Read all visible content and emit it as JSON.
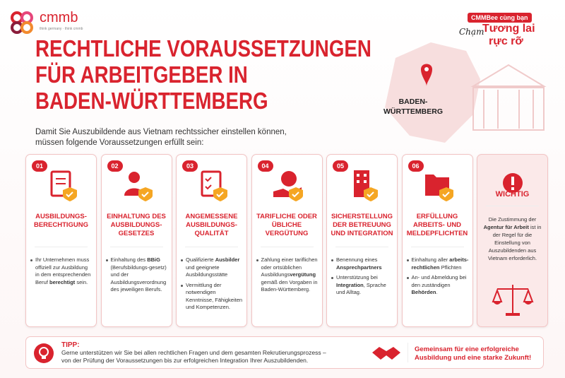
{
  "logo": {
    "name": "cmmb",
    "tagline": "think germany · think cmmb"
  },
  "badge": {
    "line1": "CMMBee cùng bạn",
    "script": "Chạm",
    "line2": "Tương lai",
    "line3": "rực rỡ"
  },
  "header": {
    "title_lines": [
      "RECHTLICHE VORAUSSETZUNGEN",
      "FÜR ARBEITGEBER IN",
      "BADEN-WÜRTTEMBERG"
    ],
    "map_label": [
      "BADEN-",
      "WÜRTTEMBERG"
    ],
    "intro": [
      "Damit Sie Auszubildende aus Vietnam rechtssicher einstellen können,",
      "müssen folgende Voraussetzungen erfüllt sein:"
    ]
  },
  "cards": [
    {
      "number": "01",
      "title": [
        "AUSBILDUNGS-",
        "BERECHTIGUNG"
      ],
      "bullets": [
        [
          {
            "text": "Ihr Unternehmen muss offiziell zur Ausbildung in dem entsprechenden Beruf "
          },
          {
            "text": "berechtigt",
            "bold": true
          },
          {
            "text": " sein."
          }
        ]
      ]
    },
    {
      "number": "02",
      "title": [
        "EINHALTUNG DES",
        "AUSBILDUNGS-",
        "GESETZES"
      ],
      "bullets": [
        [
          {
            "text": "Einhaltung des "
          },
          {
            "text": "BBiG",
            "bold": true
          },
          {
            "text": " (Berufsbildungs-gesetz) und der Ausbildungsverordnung des jeweiligen Berufs."
          }
        ]
      ]
    },
    {
      "number": "03",
      "title": [
        "ANGEMESSENE",
        "AUSBILDUNGS-",
        "QUALITÄT"
      ],
      "bullets": [
        [
          {
            "text": "Qualifizierte "
          },
          {
            "text": "Ausbilder",
            "bold": true
          },
          {
            "text": " und geeignete Ausbildungsstätte"
          }
        ],
        [
          {
            "text": "Vermittlung der notwendigen Kenntnisse, Fähigkeiten und Kompetenzen."
          }
        ]
      ]
    },
    {
      "number": "04",
      "title": [
        "TARIFLICHE ODER",
        "ÜBLICHE VERGÜTUNG"
      ],
      "bullets": [
        [
          {
            "text": "Zahlung einer tariflichen oder ortsüblichen Ausbildungs"
          },
          {
            "text": "vergütung",
            "bold": true
          },
          {
            "text": " gemäß den Vorgaben in Baden-Württemberg."
          }
        ]
      ]
    },
    {
      "number": "05",
      "title": [
        "SICHERSTELLUNG",
        "DER BETREUUNG",
        "UND INTEGRATION"
      ],
      "bullets": [
        [
          {
            "text": "Benennung eines "
          },
          {
            "text": "Ansprechpartners",
            "bold": true
          }
        ],
        [
          {
            "text": "Unterstützung bei "
          },
          {
            "text": "Integration",
            "bold": true
          },
          {
            "text": ", Sprache und Alltag."
          }
        ]
      ]
    },
    {
      "number": "06",
      "title": [
        "ERFÜLLUNG",
        "ARBEITS- UND",
        "MELDEPFLICHTEN"
      ],
      "bullets": [
        [
          {
            "text": "Einhaltung aller "
          },
          {
            "text": "arbeits-rechtlichen",
            "bold": true
          },
          {
            "text": " Pflichten"
          }
        ],
        [
          {
            "text": "An- und Abmeldung bei den zuständigen "
          },
          {
            "text": "Behörden",
            "bold": true
          },
          {
            "text": "."
          }
        ]
      ]
    }
  ],
  "important": {
    "title": "WICHTIG",
    "text": [
      {
        "text": "Die Zustimmung der "
      },
      {
        "text": "Agentur für Arbeit",
        "bold": true
      },
      {
        "text": " ist in der Regel für die Einstellung von Auszubildenden aus Vietnam erforderlich."
      }
    ]
  },
  "tip": {
    "label": "TIPP:",
    "lines": [
      "Gerne unterstützen wir Sie bei allen rechtlichen Fragen und dem gesamten Rekrutierungsprozess –",
      "von der Prüfung der Voraussetzungen bis zur erfolgreichen Integration Ihrer Auszubildenden."
    ]
  },
  "slogan": [
    "Gemeinsam für eine erfolgreiche",
    "Ausbildung und eine starke Zukunft!"
  ]
}
